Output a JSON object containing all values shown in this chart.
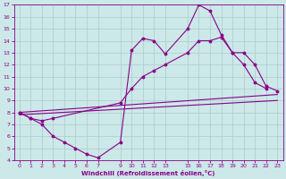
{
  "bg_color": "#cce8e8",
  "line_color": "#880088",
  "grid_color": "#aacccc",
  "xlim": [
    -0.5,
    23.5
  ],
  "ylim": [
    4,
    17
  ],
  "xticks": [
    0,
    1,
    2,
    3,
    4,
    5,
    6,
    7,
    9,
    10,
    11,
    12,
    13,
    15,
    16,
    17,
    18,
    19,
    20,
    21,
    22,
    23
  ],
  "yticks": [
    4,
    5,
    6,
    7,
    8,
    9,
    10,
    11,
    12,
    13,
    14,
    15,
    16,
    17
  ],
  "xlabel": "Windchill (Refroidissement éolien,°C)",
  "series1_x": [
    0,
    1,
    2,
    3,
    4,
    5,
    6,
    7,
    9,
    10,
    11,
    12,
    13,
    15,
    16,
    17,
    18,
    19,
    20,
    21,
    22
  ],
  "series1_y": [
    8.0,
    7.5,
    7.0,
    6.0,
    5.5,
    5.0,
    4.5,
    4.2,
    5.5,
    13.2,
    14.2,
    14.0,
    12.9,
    15.0,
    17.0,
    16.5,
    14.5,
    13.0,
    12.0,
    10.5,
    10.0
  ],
  "series2_x": [
    0,
    1,
    2,
    3,
    9,
    10,
    11,
    12,
    13,
    15,
    16,
    17,
    18,
    19,
    20,
    21,
    22,
    23
  ],
  "series2_y": [
    8.0,
    7.5,
    7.3,
    7.5,
    8.8,
    10.0,
    11.0,
    11.5,
    12.0,
    13.0,
    14.0,
    14.0,
    14.3,
    13.0,
    13.0,
    12.0,
    10.2,
    9.8
  ],
  "series3_x": [
    0,
    23
  ],
  "series3_y": [
    8.0,
    9.5
  ],
  "series4_x": [
    0,
    23
  ],
  "series4_y": [
    7.8,
    9.0
  ]
}
